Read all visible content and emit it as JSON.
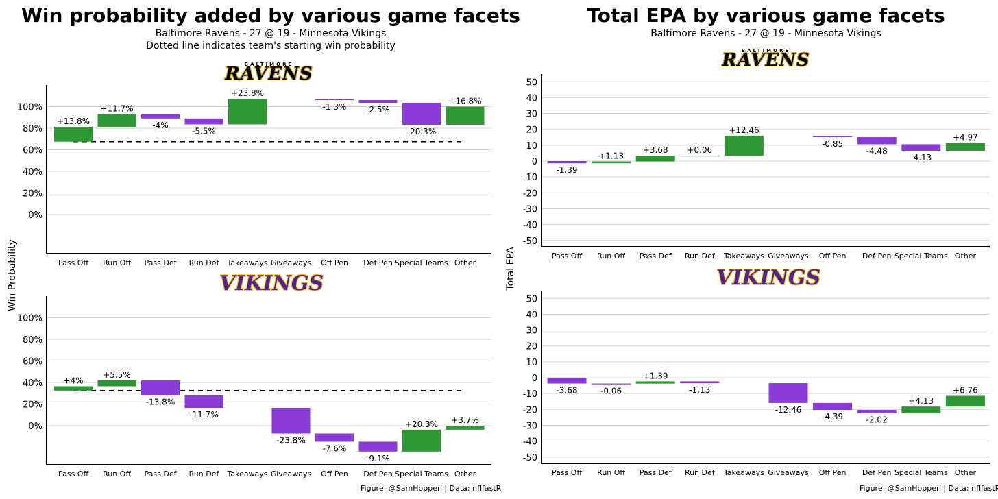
{
  "colors": {
    "positive": "#2e9632",
    "negative": "#8a3ad6",
    "grid": "#d0d0d0",
    "axis": "#000000"
  },
  "left_panel": {
    "title": "Win probability added by various game facets",
    "subtitle1": "Baltimore Ravens - 27 @ 19 - Minnesota Vikings",
    "subtitle2": "Dotted line indicates team's starting win probability",
    "ylabel": "Win Probability",
    "caption": "Figure: @SamHoppen | Data: nflfastR"
  },
  "right_panel": {
    "title": "Total EPA by various game facets",
    "subtitle1": "Baltimore Ravens - 27 @ 19 - Minnesota Vikings",
    "ylabel": "Total EPA",
    "caption": "Figure: @SamHoppen | Data: nflfastR"
  },
  "logos": {
    "ravens_small": "BALTIMORE",
    "ravens": "RAVENS",
    "vikings": "VIKINGS"
  },
  "chart_data": [
    {
      "id": "wp_ravens",
      "type": "waterfall",
      "team": "Baltimore Ravens",
      "categories": [
        "Pass Off",
        "Run Off",
        "Pass Def",
        "Run Def",
        "Takeaways",
        "Giveaways",
        "Off Pen",
        "Def Pen",
        "Special Teams",
        "Other"
      ],
      "values": [
        13.8,
        11.7,
        -4,
        -5.5,
        23.8,
        0,
        -1.3,
        -2.5,
        -20.3,
        16.8
      ],
      "labels": [
        "+13.8%",
        "+11.7%",
        "-4%",
        "-5.5%",
        "+23.8%",
        "",
        "-1.3%",
        "-2.5%",
        "-20.3%",
        "+16.8%"
      ],
      "start": 67.5,
      "yticks": [
        0,
        20,
        40,
        60,
        80,
        100
      ],
      "ytick_labels": [
        "0%",
        "20%",
        "40%",
        "60%",
        "80%",
        "100%"
      ],
      "ylim": [
        -35,
        120
      ]
    },
    {
      "id": "wp_vikings",
      "type": "waterfall",
      "team": "Minnesota Vikings",
      "categories": [
        "Pass Off",
        "Run Off",
        "Pass Def",
        "Run Def",
        "Takeaways",
        "Giveaways",
        "Off Pen",
        "Def Pen",
        "Special Teams",
        "Other"
      ],
      "values": [
        4,
        5.5,
        -13.8,
        -11.7,
        0,
        -23.8,
        -7.6,
        -9.1,
        20.3,
        3.7
      ],
      "labels": [
        "+4%",
        "+5.5%",
        "-13.8%",
        "-11.7%",
        "",
        "-23.8%",
        "-7.6%",
        "-9.1%",
        "+20.3%",
        "+3.7%"
      ],
      "start": 32.5,
      "yticks": [
        0,
        20,
        40,
        60,
        80,
        100
      ],
      "ytick_labels": [
        "0%",
        "20%",
        "40%",
        "60%",
        "80%",
        "100%"
      ],
      "ylim": [
        -35,
        120
      ]
    },
    {
      "id": "epa_ravens",
      "type": "waterfall",
      "team": "Baltimore Ravens",
      "categories": [
        "Pass Off",
        "Run Off",
        "Pass Def",
        "Run Def",
        "Takeaways",
        "Giveaways",
        "Off Pen",
        "Def Pen",
        "Special Teams",
        "Other"
      ],
      "values": [
        -1.39,
        1.13,
        3.68,
        0.06,
        12.46,
        0,
        -0.85,
        -4.48,
        -4.13,
        4.97
      ],
      "labels": [
        "-1.39",
        "+1.13",
        "+3.68",
        "+0.06",
        "+12.46",
        "",
        "-0.85",
        "-4.48",
        "-4.13",
        "+4.97"
      ],
      "start": 0,
      "yticks": [
        -50,
        -40,
        -30,
        -20,
        -10,
        0,
        10,
        20,
        30,
        40,
        50
      ],
      "ytick_labels": [
        "-50",
        "-40",
        "-30",
        "-20",
        "-10",
        "0",
        "10",
        "20",
        "30",
        "40",
        "50"
      ],
      "ylim": [
        -55,
        55
      ]
    },
    {
      "id": "epa_vikings",
      "type": "waterfall",
      "team": "Minnesota Vikings",
      "categories": [
        "Pass Off",
        "Run Off",
        "Pass Def",
        "Run Def",
        "Takeaways",
        "Giveaways",
        "Off Pen",
        "Def Pen",
        "Special Teams",
        "Other"
      ],
      "values": [
        -3.68,
        -0.06,
        1.39,
        -1.13,
        0,
        -12.46,
        -4.39,
        -2.02,
        4.13,
        6.76
      ],
      "labels": [
        "-3.68",
        "-0.06",
        "+1.39",
        "-1.13",
        "",
        "-12.46",
        "-4.39",
        "-2.02",
        "+4.13",
        "+6.76"
      ],
      "start": 0,
      "yticks": [
        -50,
        -40,
        -30,
        -20,
        -10,
        0,
        10,
        20,
        30,
        40,
        50
      ],
      "ytick_labels": [
        "-50",
        "-40",
        "-30",
        "-20",
        "-10",
        "0",
        "10",
        "20",
        "30",
        "40",
        "50"
      ],
      "ylim": [
        -55,
        55
      ]
    }
  ]
}
